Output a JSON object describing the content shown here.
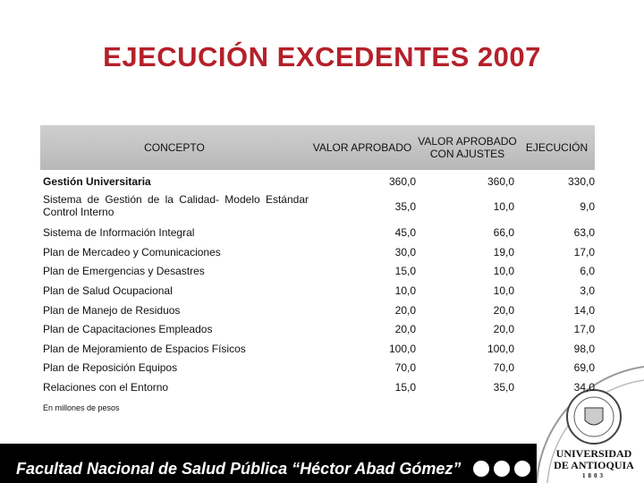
{
  "title": "EJECUCIÓN EXCEDENTES 2007",
  "table": {
    "header": [
      "CONCEPTO",
      "VALOR APROBADO",
      "VALOR APROBADO CON AJUSTES",
      "EJECUCIÓN"
    ],
    "rows": [
      [
        "Gestión Universitaria",
        "360,0",
        "360,0",
        "330,0"
      ],
      [
        "Sistema de Gestión de la Calidad- Modelo Estándar Control Interno",
        "35,0",
        "10,0",
        "9,0"
      ],
      [
        "Sistema de Información Integral",
        "45,0",
        "66,0",
        "63,0"
      ],
      [
        "Plan de Mercadeo y Comunicaciones",
        "30,0",
        "19,0",
        "17,0"
      ],
      [
        "Plan de Emergencias y Desastres",
        "15,0",
        "10,0",
        "6,0"
      ],
      [
        "Plan de Salud Ocupacional",
        "10,0",
        "10,0",
        "3,0"
      ],
      [
        "Plan de Manejo de Residuos",
        "20,0",
        "20,0",
        "14,0"
      ],
      [
        "Plan de Capacitaciones Empleados",
        "20,0",
        "20,0",
        "17,0"
      ],
      [
        "Plan de Mejoramiento de Espacios Físicos",
        "100,0",
        "100,0",
        "98,0"
      ],
      [
        "Plan de Reposición Equipos",
        "70,0",
        "70,0",
        "69,0"
      ],
      [
        "Relaciones con el Entorno",
        "15,0",
        "35,0",
        "34,0"
      ]
    ]
  },
  "note": "En millones de pesos",
  "footer": "Facultad Nacional de Salud Pública “Héctor Abad Gómez”",
  "logo": [
    "UNIVERSIDAD",
    "DE ANTIOQUIA",
    "1803"
  ]
}
